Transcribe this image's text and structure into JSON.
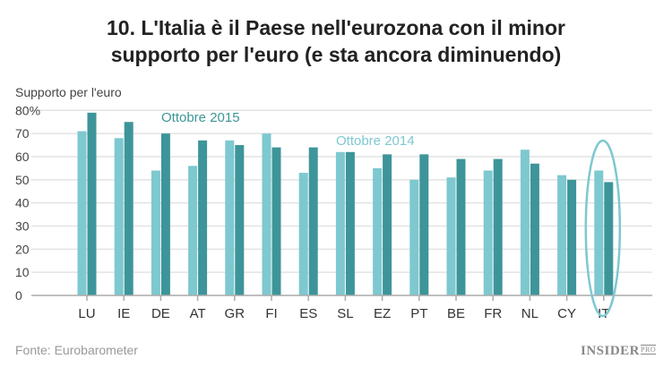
{
  "chart_data": {
    "type": "bar",
    "title": "10. L'Italia è il Paese nell'eurozona con il minor supporto per l'euro (e sta ancora diminuendo)",
    "title_lines": [
      "10. L'Italia è il Paese nell'eurozona con il minor",
      "supporto per l'euro (e sta ancora diminuendo)"
    ],
    "ylabel": "Supporto per l'euro",
    "xlabel": "",
    "ylim": [
      0,
      80
    ],
    "yticks": [
      "0",
      "10",
      "20",
      "30",
      "40",
      "50",
      "60",
      "70",
      "80%"
    ],
    "grid": true,
    "categories": [
      "LU",
      "IE",
      "DE",
      "AT",
      "GR",
      "FI",
      "ES",
      "SL",
      "EZ",
      "PT",
      "BE",
      "FR",
      "NL",
      "CY",
      "IT"
    ],
    "series": [
      {
        "name": "Ottobre 2014",
        "color": "#7ec8d0",
        "values": [
          71,
          68,
          54,
          56,
          67,
          70,
          53,
          62,
          55,
          50,
          51,
          54,
          63,
          52,
          54
        ]
      },
      {
        "name": "Ottobre 2015",
        "color": "#3d9599",
        "values": [
          79,
          75,
          70,
          67,
          65,
          64,
          64,
          62,
          61,
          61,
          59,
          59,
          57,
          50,
          49
        ]
      }
    ],
    "highlight": "IT",
    "source": "Fonte: Eurobarometer"
  },
  "logo": {
    "text": "INSIDER",
    "suffix": "PRO"
  }
}
